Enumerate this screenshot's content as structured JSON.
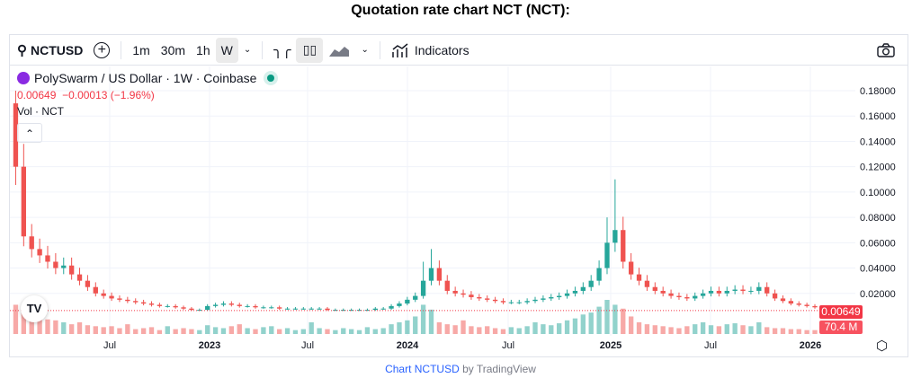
{
  "page_title": "Quotation rate chart NCT (NCT):",
  "toolbar": {
    "symbol": "NCTUSD",
    "intervals": [
      "1m",
      "30m",
      "1h",
      "W"
    ],
    "indicators": "Indicators"
  },
  "legend": {
    "name": "PolySwarm / US Dollar · 1W · Coinbase",
    "price": "0.00649",
    "change": "−0.00013 (−1.96%)",
    "vol": "Vol · NCT"
  },
  "tags": {
    "price": "0.00649",
    "volume": "70.4 M"
  },
  "footer": {
    "link": "Chart NCTUSD",
    "by": " by TradingView"
  },
  "colors": {
    "up": "#26a69a",
    "down": "#ef5350"
  },
  "chart_data": {
    "type": "candlestick",
    "y_ticks": [
      "0.18000",
      "0.16000",
      "0.14000",
      "0.12000",
      "0.10000",
      "0.08000",
      "0.06000",
      "0.04000",
      "0.02000"
    ],
    "ylim": [
      0,
      0.18
    ],
    "x_ticks": [
      "Jul",
      "2023",
      "Jul",
      "2024",
      "Jul",
      "2025",
      "Jul",
      "2026"
    ],
    "interval": "2 weeks (sampled)",
    "open_first": 0.17,
    "closes": [
      0.12,
      0.065,
      0.055,
      0.05,
      0.045,
      0.04,
      0.042,
      0.035,
      0.03,
      0.025,
      0.02,
      0.018,
      0.016,
      0.015,
      0.014,
      0.013,
      0.012,
      0.011,
      0.01,
      0.01,
      0.009,
      0.008,
      0.007,
      0.007,
      0.01,
      0.011,
      0.012,
      0.011,
      0.01,
      0.01,
      0.009,
      0.009,
      0.009,
      0.008,
      0.008,
      0.008,
      0.008,
      0.008,
      0.008,
      0.007,
      0.007,
      0.007,
      0.007,
      0.007,
      0.007,
      0.008,
      0.008,
      0.01,
      0.012,
      0.015,
      0.018,
      0.03,
      0.04,
      0.03,
      0.022,
      0.02,
      0.019,
      0.017,
      0.016,
      0.015,
      0.014,
      0.013,
      0.013,
      0.013,
      0.014,
      0.015,
      0.016,
      0.017,
      0.018,
      0.02,
      0.022,
      0.025,
      0.03,
      0.04,
      0.06,
      0.07,
      0.045,
      0.035,
      0.03,
      0.025,
      0.022,
      0.02,
      0.018,
      0.017,
      0.016,
      0.018,
      0.02,
      0.022,
      0.02,
      0.022,
      0.023,
      0.022,
      0.022,
      0.025,
      0.02,
      0.016,
      0.014,
      0.012,
      0.011,
      0.01,
      0.009,
      0.008,
      0.008,
      0.007,
      0.0065
    ],
    "high_spikes": {
      "0": 0.18,
      "51": 0.045,
      "52": 0.055,
      "74": 0.08,
      "75": 0.11
    },
    "volumes": [
      30,
      25,
      20,
      18,
      15,
      14,
      12,
      10,
      12,
      9,
      8,
      7,
      8,
      6,
      10,
      5,
      6,
      7,
      4,
      8,
      5,
      6,
      5,
      4,
      9,
      7,
      6,
      8,
      10,
      6,
      5,
      7,
      8,
      5,
      6,
      4,
      5,
      12,
      6,
      5,
      4,
      6,
      5,
      4,
      7,
      5,
      6,
      10,
      12,
      14,
      18,
      30,
      25,
      12,
      10,
      9,
      14,
      8,
      7,
      8,
      6,
      5,
      7,
      6,
      8,
      12,
      10,
      9,
      11,
      14,
      16,
      20,
      22,
      28,
      35,
      30,
      26,
      18,
      12,
      10,
      9,
      8,
      7,
      6,
      8,
      10,
      12,
      9,
      8,
      10,
      11,
      9,
      8,
      12,
      7,
      6,
      6,
      5,
      5,
      4,
      4,
      5,
      4,
      3,
      3
    ]
  }
}
